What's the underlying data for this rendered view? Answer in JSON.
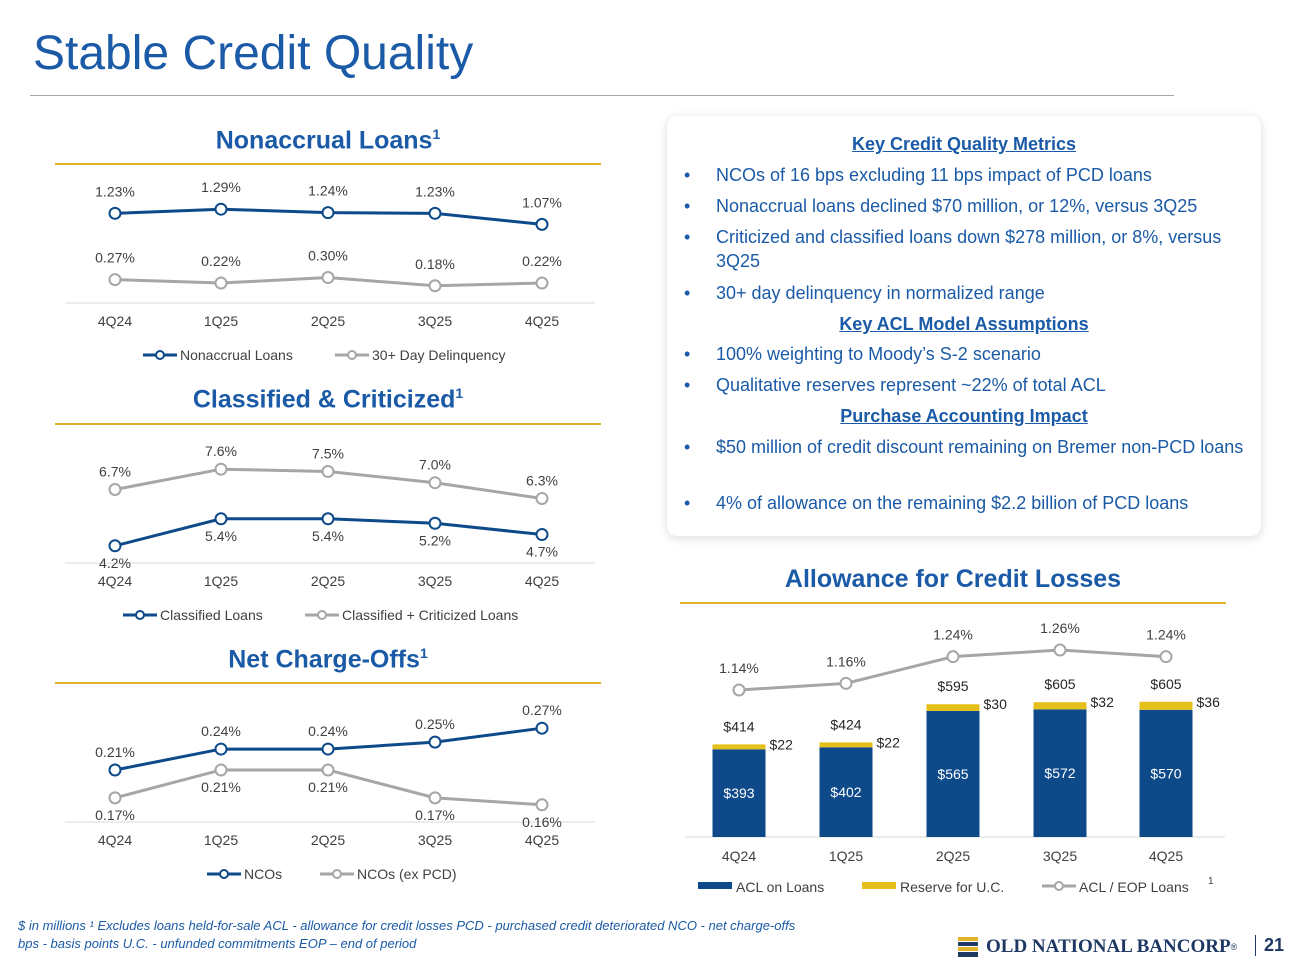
{
  "slide": {
    "title": "Stable Credit Quality",
    "page_number": "21",
    "logo_text": "OLD NATIONAL BANCORP",
    "logo_registered": "®"
  },
  "footnotes": {
    "line1": "$ in millions   ¹ Excludes loans held-for-sale   ACL - allowance for credit losses   PCD - purchased credit deteriorated   NCO - net charge-offs",
    "line2": "bps - basis points   U.C. - unfunded commitments   EOP – end of period"
  },
  "metrics": {
    "heading1": "Key Credit Quality Metrics",
    "bullets1": [
      "NCOs of 16 bps excluding 11 bps impact of PCD loans",
      "Nonaccrual loans declined $70 million, or 12%, versus 3Q25",
      "Criticized and classified loans down $278 million, or 8%, versus 3Q25",
      "30+ day delinquency in normalized range"
    ],
    "heading2": "Key ACL Model Assumptions",
    "bullets2": [
      "100% weighting to Moody’s S-2 scenario",
      "Qualitative reserves represent ~22% of total ACL"
    ],
    "heading3": "Purchase Accounting Impact",
    "bullets3": [
      "$50 million of credit discount remaining on Bremer non-PCD loans",
      "4% of allowance on the remaining $2.2 billion of PCD loans"
    ],
    "bullet_symbol": "•"
  },
  "colors": {
    "navy": "#0e4a8a",
    "gray": "#a6a6a6",
    "gold": "#e6c01a",
    "title_blue": "#1a5aa6"
  },
  "chart_data": [
    {
      "type": "line",
      "title": "Nonaccrual Loans",
      "title_sup": "1",
      "categories": [
        "4Q24",
        "1Q25",
        "2Q25",
        "3Q25",
        "4Q25"
      ],
      "series": [
        {
          "name": "Nonaccrual Loans",
          "values": [
            1.23,
            1.29,
            1.24,
            1.23,
            1.07
          ],
          "labels": [
            "1.23%",
            "1.29%",
            "1.24%",
            "1.23%",
            "1.07%"
          ]
        },
        {
          "name": "30+ Day Delinquency",
          "values": [
            0.27,
            0.22,
            0.3,
            0.18,
            0.22
          ],
          "labels": [
            "0.27%",
            "0.22%",
            "0.30%",
            "0.18%",
            "0.22%"
          ]
        }
      ],
      "legend": "bottom"
    },
    {
      "type": "line",
      "title": "Classified & Criticized",
      "title_sup": "1",
      "categories": [
        "4Q24",
        "1Q25",
        "2Q25",
        "3Q25",
        "4Q25"
      ],
      "series": [
        {
          "name": "Classified Loans",
          "values": [
            4.2,
            5.4,
            5.4,
            5.2,
            4.7
          ],
          "labels": [
            "4.2%",
            "5.4%",
            "5.4%",
            "5.2%",
            "4.7%"
          ]
        },
        {
          "name": "Classified + Criticized Loans",
          "values": [
            6.7,
            7.6,
            7.5,
            7.0,
            6.3
          ],
          "labels": [
            "6.7%",
            "7.6%",
            "7.5%",
            "7.0%",
            "6.3%"
          ]
        }
      ],
      "legend": "bottom"
    },
    {
      "type": "line",
      "title": "Net Charge-Offs",
      "title_sup": "1",
      "categories": [
        "4Q24",
        "1Q25",
        "2Q25",
        "3Q25",
        "4Q25"
      ],
      "series": [
        {
          "name": "NCOs",
          "values": [
            0.21,
            0.24,
            0.24,
            0.25,
            0.27
          ],
          "labels": [
            "0.21%",
            "0.24%",
            "0.24%",
            "0.25%",
            "0.27%"
          ]
        },
        {
          "name": "NCOs (ex PCD)",
          "values": [
            0.17,
            0.21,
            0.21,
            0.17,
            0.16
          ],
          "labels": [
            "0.17%",
            "0.21%",
            "0.21%",
            "0.17%",
            "0.16%"
          ]
        }
      ],
      "legend": "bottom"
    },
    {
      "type": "bar",
      "stacked": true,
      "title": "Allowance for Credit Losses",
      "categories": [
        "4Q24",
        "1Q25",
        "2Q25",
        "3Q25",
        "4Q25"
      ],
      "series": [
        {
          "name": "ACL on Loans",
          "values": [
            393,
            402,
            565,
            572,
            570
          ],
          "labels": [
            "$393",
            "$402",
            "$565",
            "$572",
            "$570"
          ]
        },
        {
          "name": "Reserve for U.C.",
          "values": [
            22,
            22,
            30,
            32,
            36
          ],
          "labels": [
            "$22",
            "$22",
            "$30",
            "$32",
            "$36"
          ]
        }
      ],
      "totals": [
        414,
        424,
        595,
        605,
        605
      ],
      "total_labels": [
        "$414",
        "$424",
        "$595",
        "$605",
        "$605"
      ],
      "line_series": {
        "name": "ACL / EOP Loans",
        "name_sup": "1",
        "values": [
          1.14,
          1.16,
          1.24,
          1.26,
          1.24
        ],
        "labels": [
          "1.14%",
          "1.16%",
          "1.24%",
          "1.26%",
          "1.24%"
        ]
      },
      "legend": "bottom"
    }
  ]
}
